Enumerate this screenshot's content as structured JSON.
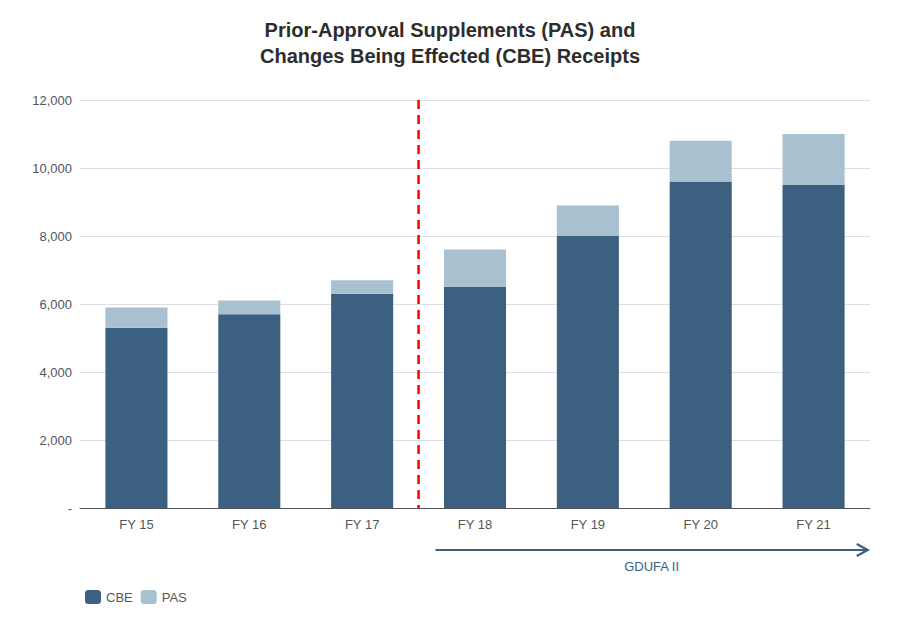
{
  "chart_data": {
    "type": "bar",
    "stacked": true,
    "title": "Prior-Approval Supplements (PAS) and\nChanges Being Effected (CBE) Receipts",
    "categories": [
      "FY 15",
      "FY 16",
      "FY 17",
      "FY 18",
      "FY 19",
      "FY 20",
      "FY 21"
    ],
    "series": [
      {
        "name": "CBE",
        "color": "#3B6080",
        "values": [
          5300,
          5700,
          6300,
          6500,
          8000,
          9600,
          9500
        ]
      },
      {
        "name": "PAS",
        "color": "#A8C0D0",
        "values": [
          600,
          400,
          400,
          1100,
          900,
          1200,
          1500
        ]
      }
    ],
    "ylim": [
      0,
      12000
    ],
    "yticks": [
      {
        "value": 0,
        "label": "-"
      },
      {
        "value": 2000,
        "label": "2,000"
      },
      {
        "value": 4000,
        "label": "4,000"
      },
      {
        "value": 6000,
        "label": "6,000"
      },
      {
        "value": 8000,
        "label": "8,000"
      },
      {
        "value": 10000,
        "label": "10,000"
      },
      {
        "value": 12000,
        "label": "12,000"
      }
    ],
    "grid": true,
    "legend": "lower left",
    "annotations": [
      {
        "type": "vline",
        "between": [
          "FY 17",
          "FY 18"
        ],
        "color": "red",
        "line_style": "dashed"
      },
      {
        "type": "arrow",
        "text": "GDUFA II",
        "from": "FY 18",
        "to": "FY 21",
        "color": "#3B6080"
      }
    ]
  }
}
